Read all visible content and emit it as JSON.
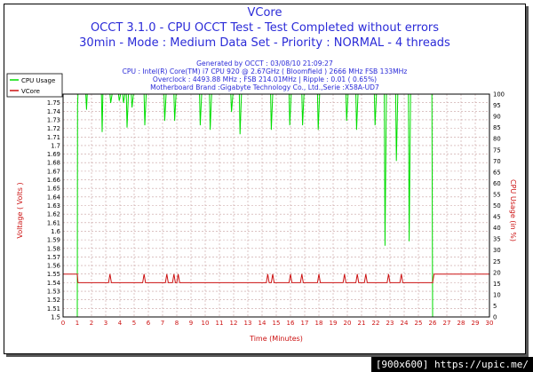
{
  "chart_data": {
    "type": "line",
    "title": "VCore",
    "subtitle_lines": [
      "OCCT 3.1.0 - CPU OCCT Test - Test Completed without errors",
      "30min - Mode : Medium Data Set - Priority : NORMAL - 4 threads"
    ],
    "info_lines": [
      "Generated by OCCT : 03/08/10 21:09:27",
      "CPU : Intel(R) Core(TM) i7 CPU 920 @ 2.67GHz ( Bloomfield ) 2666 MHz FSB 133MHz",
      "Overclock : 4493.88 MHz ; FSB 214.01MHz | Ripple : 0.01 ( 0.65%)",
      "Motherboard Brand :Gigabyte Technology Co., Ltd.,Serie :X58A-UD7"
    ],
    "xlabel": "Time (Minutes)",
    "ylabel_left": "Voltage ( Volts )",
    "ylabel_right": "CPU Usage (in %)",
    "xlim": [
      0,
      30
    ],
    "ylim_left": [
      1.5,
      1.76
    ],
    "ylim_right": [
      0,
      100
    ],
    "x_ticks": [
      0,
      1,
      2,
      3,
      4,
      5,
      6,
      7,
      8,
      9,
      10,
      11,
      12,
      13,
      14,
      15,
      16,
      17,
      18,
      19,
      20,
      21,
      22,
      23,
      24,
      25,
      26,
      27,
      28,
      29,
      30
    ],
    "y_left_ticks": [
      "1.5",
      "1.51",
      "1.52",
      "1.53",
      "1.54",
      "1.55",
      "1.56",
      "1.57",
      "1.58",
      "1.59",
      "1.6",
      "1.61",
      "1.62",
      "1.63",
      "1.64",
      "1.65",
      "1.66",
      "1.67",
      "1.68",
      "1.69",
      "1.7",
      "1.71",
      "1.72",
      "1.73",
      "1.74",
      "1.75"
    ],
    "y_right_ticks": [
      "0",
      "5",
      "10",
      "15",
      "20",
      "25",
      "30",
      "35",
      "40",
      "45",
      "50",
      "55",
      "60",
      "65",
      "70",
      "75",
      "80",
      "85",
      "90",
      "95",
      "100"
    ],
    "legend": [
      "CPU Usage",
      "VCore"
    ],
    "legend_position": "top-left",
    "grid": true,
    "series": [
      {
        "name": "CPU Usage",
        "axis": "right",
        "color": "#00dd00",
        "x": [
          0,
          1.0,
          1.02,
          1.05,
          1.15,
          1.6,
          1.65,
          1.7,
          2.7,
          2.75,
          2.8,
          2.9,
          3.3,
          3.35,
          3.45,
          3.9,
          3.95,
          4.05,
          4.2,
          4.25,
          4.35,
          4.45,
          4.5,
          4.6,
          4.8,
          4.85,
          4.95,
          5.7,
          5.75,
          5.85,
          7.1,
          7.15,
          7.25,
          7.8,
          7.85,
          7.95,
          9.6,
          9.65,
          9.75,
          10.3,
          10.35,
          10.45,
          11.8,
          11.85,
          11.95,
          12.4,
          12.45,
          12.55,
          14.6,
          14.65,
          14.75,
          15.9,
          15.95,
          16.05,
          16.8,
          16.85,
          16.95,
          17.9,
          17.95,
          18.05,
          19.9,
          19.95,
          20.05,
          20.6,
          20.65,
          20.75,
          21.9,
          21.95,
          22.05,
          22.6,
          22.65,
          22.75,
          23.4,
          23.45,
          23.55,
          24.3,
          24.35,
          24.45,
          25.95,
          26.0,
          26.05,
          30
        ],
        "values": [
          0,
          0,
          95,
          100,
          100,
          100,
          93,
          100,
          100,
          83,
          100,
          100,
          100,
          96,
          100,
          100,
          97,
          100,
          100,
          96,
          100,
          100,
          85,
          100,
          100,
          94,
          100,
          100,
          86,
          100,
          100,
          88,
          100,
          100,
          88,
          100,
          100,
          86,
          100,
          100,
          84,
          100,
          100,
          92,
          100,
          100,
          82,
          100,
          100,
          84,
          100,
          100,
          86,
          100,
          100,
          86,
          100,
          100,
          84,
          100,
          100,
          88,
          100,
          100,
          84,
          100,
          100,
          86,
          100,
          100,
          32,
          100,
          100,
          70,
          100,
          100,
          34,
          100,
          100,
          0,
          0,
          0
        ]
      },
      {
        "name": "VCore",
        "axis": "left",
        "color": "#cc1111",
        "x": [
          0,
          1.0,
          1.05,
          3.2,
          3.3,
          3.4,
          5.6,
          5.7,
          5.8,
          7.2,
          7.3,
          7.4,
          7.7,
          7.8,
          7.9,
          8.0,
          8.1,
          8.2,
          14.3,
          14.4,
          14.5,
          14.65,
          14.75,
          14.85,
          15.9,
          16.0,
          16.1,
          16.7,
          16.8,
          16.9,
          17.9,
          18.0,
          18.1,
          19.7,
          19.8,
          19.9,
          20.6,
          20.7,
          20.8,
          21.2,
          21.3,
          21.4,
          22.8,
          22.9,
          23.0,
          23.7,
          23.8,
          23.9,
          26.0,
          26.1,
          30
        ],
        "values": [
          1.55,
          1.55,
          1.54,
          1.54,
          1.55,
          1.54,
          1.54,
          1.55,
          1.54,
          1.54,
          1.55,
          1.54,
          1.54,
          1.55,
          1.54,
          1.54,
          1.55,
          1.54,
          1.54,
          1.55,
          1.54,
          1.54,
          1.55,
          1.54,
          1.54,
          1.55,
          1.54,
          1.54,
          1.55,
          1.54,
          1.54,
          1.55,
          1.54,
          1.54,
          1.55,
          1.54,
          1.54,
          1.55,
          1.54,
          1.54,
          1.55,
          1.54,
          1.54,
          1.55,
          1.54,
          1.54,
          1.55,
          1.54,
          1.54,
          1.55,
          1.55
        ]
      }
    ]
  },
  "badge": {
    "text": "[900x600] https://upic.me/"
  }
}
